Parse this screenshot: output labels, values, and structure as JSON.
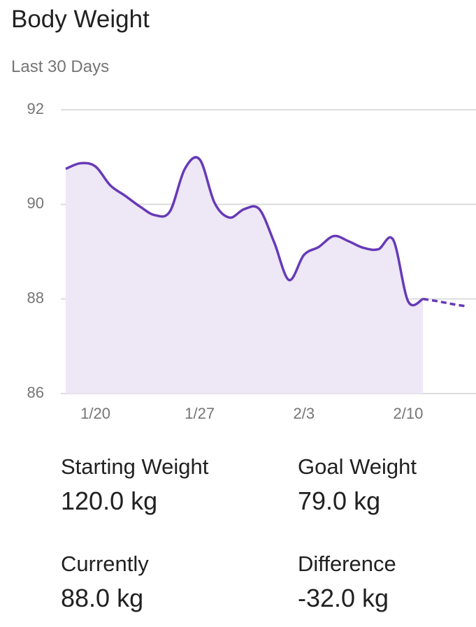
{
  "header": {
    "title": "Body Weight",
    "subtitle": "Last 30 Days"
  },
  "chart_data": {
    "type": "line",
    "categories": [
      null,
      null,
      "1/20",
      null,
      null,
      null,
      null,
      null,
      null,
      "1/27",
      null,
      null,
      null,
      null,
      null,
      null,
      "2/3",
      null,
      null,
      null,
      null,
      null,
      null,
      "2/10",
      null,
      null,
      null,
      null
    ],
    "series": [
      {
        "color": "#673ab7",
        "fill": "#ede7f6",
        "dashed": false,
        "values": [
          90.75,
          90.87,
          90.8,
          90.4,
          90.18,
          89.95,
          89.77,
          89.85,
          90.75,
          90.95,
          90.03,
          89.72,
          89.9,
          89.9,
          89.2,
          88.4,
          88.93,
          89.1,
          89.33,
          89.22,
          89.08,
          89.05,
          89.25,
          87.95,
          88.0,
          null,
          null,
          null
        ]
      },
      {
        "color": "#673ab7",
        "dashed": true,
        "values": [
          null,
          null,
          null,
          null,
          null,
          null,
          null,
          null,
          null,
          null,
          null,
          null,
          null,
          null,
          null,
          null,
          null,
          null,
          null,
          null,
          null,
          null,
          null,
          null,
          88.0,
          87.95,
          87.89,
          87.84
        ]
      }
    ],
    "ylim": [
      86,
      92
    ],
    "yticks": [
      86,
      88,
      90,
      92
    ],
    "grid": true
  },
  "stats": [
    {
      "label": "Starting Weight",
      "value": "120.0 kg"
    },
    {
      "label": "Goal Weight",
      "value": "79.0 kg"
    },
    {
      "label": "Currently",
      "value": "88.0 kg"
    },
    {
      "label": "Difference",
      "value": "-32.0 kg"
    }
  ]
}
